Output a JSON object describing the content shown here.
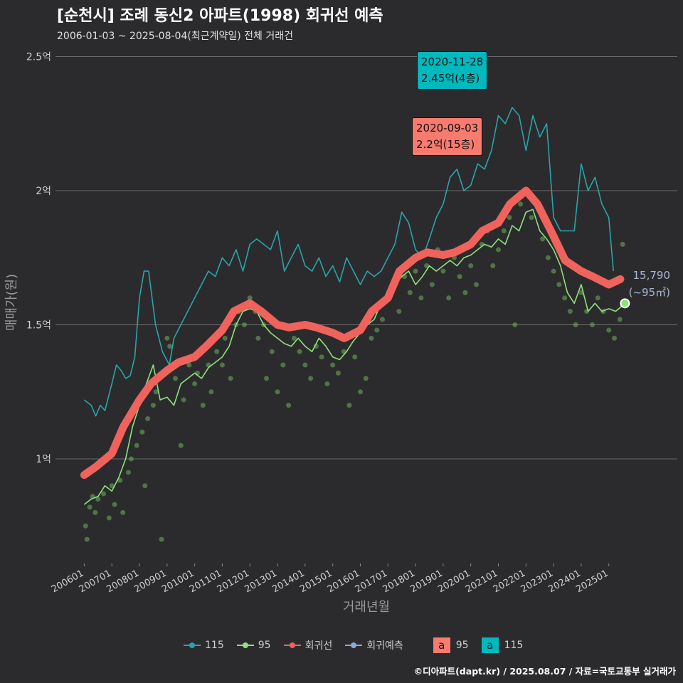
{
  "title": "[순천시] 조례 동신2 아파트(1998) 회귀선 예측",
  "subtitle": "2006-01-03 ~ 2025-08-04(최근계약일) 전체 거래건",
  "caption": "©디아파트(dapt.kr) / 2025.08.07 / 자료=국토교통부 실거래가",
  "legend": {
    "items": [
      {
        "label": "115",
        "color": "#2aa4a8",
        "icon": "line-point"
      },
      {
        "label": "95",
        "color": "#8ee27a",
        "icon": "line-point"
      },
      {
        "label": "회귀선",
        "color": "#f0625c",
        "icon": "line-point"
      },
      {
        "label": "회귀예측",
        "color": "#8fa8d8",
        "icon": "line-point"
      }
    ],
    "fill_items": [
      {
        "box": "a",
        "label": "95",
        "color": "#f87b6f"
      },
      {
        "box": "a",
        "label": "115",
        "color": "#00b9be"
      }
    ]
  },
  "annotations": {
    "top_115": {
      "date": "2020-11-28",
      "text": "2.45억(4층)"
    },
    "top_95": {
      "date": "2020-09-03",
      "text": "2.2억(15층)"
    },
    "latest_value": "15,790",
    "latest_area": "(~95㎡)"
  },
  "colors": {
    "background": "#2b2b2d",
    "grid": "#6a6a6a",
    "s115": "#2aa4a8",
    "s95": "#8ee27a",
    "regression": "#f0625c",
    "prediction": "#8fa8d8",
    "scatter": "#6fb05c"
  },
  "chart_data": {
    "type": "line",
    "xlabel": "거래년월",
    "ylabel": "매매가(원)",
    "x_range": [
      "2006-01",
      "2025-08"
    ],
    "ylim": [
      0.6,
      2.55
    ],
    "y_unit": "억",
    "y_ticks": [
      {
        "value": 1.0,
        "label": "1억"
      },
      {
        "value": 1.5,
        "label": "1.5억"
      },
      {
        "value": 2.0,
        "label": "2억"
      },
      {
        "value": 2.5,
        "label": "2.5억"
      }
    ],
    "x_ticks": [
      "200601",
      "200701",
      "200801",
      "200901",
      "201001",
      "201101",
      "201201",
      "201301",
      "201401",
      "201501",
      "201601",
      "201701",
      "201801",
      "201901",
      "202001",
      "202101",
      "202201",
      "202301",
      "202401",
      "202501"
    ],
    "grid": "horizontal",
    "series": [
      {
        "name": "115",
        "type": "line",
        "x": [
          "2006-01",
          "2006-04",
          "2006-06",
          "2006-08",
          "2006-10",
          "2007-01",
          "2007-03",
          "2007-05",
          "2007-07",
          "2007-09",
          "2007-11",
          "2008-01",
          "2008-03",
          "2008-05",
          "2008-08",
          "2008-11",
          "2009-02",
          "2009-04",
          "2009-07",
          "2009-10",
          "2010-01",
          "2010-04",
          "2010-07",
          "2010-10",
          "2011-01",
          "2011-04",
          "2011-07",
          "2011-10",
          "2012-01",
          "2012-04",
          "2012-07",
          "2012-10",
          "2013-01",
          "2013-04",
          "2013-07",
          "2013-10",
          "2014-01",
          "2014-04",
          "2014-07",
          "2014-10",
          "2015-01",
          "2015-04",
          "2015-07",
          "2015-10",
          "2016-01",
          "2016-04",
          "2016-07",
          "2016-10",
          "2017-01",
          "2017-04",
          "2017-07",
          "2017-10",
          "2018-01",
          "2018-04",
          "2018-07",
          "2018-10",
          "2019-01",
          "2019-04",
          "2019-07",
          "2019-10",
          "2020-01",
          "2020-04",
          "2020-07",
          "2020-10",
          "2021-01",
          "2021-04",
          "2021-07",
          "2021-10",
          "2022-01",
          "2022-04",
          "2022-07",
          "2022-10",
          "2023-01",
          "2023-04",
          "2023-07",
          "2023-10",
          "2024-01",
          "2024-04",
          "2024-07",
          "2024-10",
          "2025-01",
          "2025-03"
        ],
        "values": [
          1.22,
          1.2,
          1.16,
          1.2,
          1.18,
          1.28,
          1.35,
          1.33,
          1.3,
          1.31,
          1.38,
          1.6,
          1.7,
          1.7,
          1.5,
          1.4,
          1.35,
          1.45,
          1.5,
          1.55,
          1.6,
          1.65,
          1.7,
          1.68,
          1.75,
          1.72,
          1.78,
          1.7,
          1.8,
          1.82,
          1.8,
          1.78,
          1.85,
          1.7,
          1.75,
          1.8,
          1.72,
          1.7,
          1.75,
          1.68,
          1.72,
          1.66,
          1.75,
          1.7,
          1.65,
          1.7,
          1.68,
          1.7,
          1.75,
          1.8,
          1.92,
          1.88,
          1.78,
          1.75,
          1.82,
          1.9,
          1.95,
          2.05,
          2.08,
          2.0,
          2.02,
          2.1,
          2.08,
          2.15,
          2.28,
          2.25,
          2.31,
          2.28,
          2.15,
          2.28,
          2.2,
          2.25,
          1.9,
          1.85,
          1.85,
          1.85,
          2.1,
          2.0,
          2.05,
          1.95,
          1.9,
          1.7
        ]
      },
      {
        "name": "95",
        "type": "line",
        "x": [
          "2006-01",
          "2006-04",
          "2006-07",
          "2006-10",
          "2007-01",
          "2007-04",
          "2007-07",
          "2007-10",
          "2008-01",
          "2008-04",
          "2008-07",
          "2008-10",
          "2009-01",
          "2009-04",
          "2009-07",
          "2009-10",
          "2010-01",
          "2010-04",
          "2010-07",
          "2010-10",
          "2011-01",
          "2011-04",
          "2011-07",
          "2011-10",
          "2012-01",
          "2012-04",
          "2012-07",
          "2012-10",
          "2013-01",
          "2013-04",
          "2013-07",
          "2013-10",
          "2014-01",
          "2014-04",
          "2014-07",
          "2014-10",
          "2015-01",
          "2015-04",
          "2015-07",
          "2015-10",
          "2016-01",
          "2016-04",
          "2016-07",
          "2016-10",
          "2017-01",
          "2017-04",
          "2017-07",
          "2017-10",
          "2018-01",
          "2018-04",
          "2018-07",
          "2018-10",
          "2019-01",
          "2019-04",
          "2019-07",
          "2019-10",
          "2020-01",
          "2020-04",
          "2020-07",
          "2020-10",
          "2021-01",
          "2021-04",
          "2021-07",
          "2021-10",
          "2022-01",
          "2022-04",
          "2022-07",
          "2022-10",
          "2023-01",
          "2023-04",
          "2023-07",
          "2023-10",
          "2024-01",
          "2024-04",
          "2024-07",
          "2024-10",
          "2025-01",
          "2025-04",
          "2025-08"
        ],
        "values": [
          0.83,
          0.85,
          0.86,
          0.9,
          0.88,
          0.93,
          1.0,
          1.12,
          1.2,
          1.28,
          1.35,
          1.22,
          1.23,
          1.2,
          1.28,
          1.3,
          1.32,
          1.3,
          1.34,
          1.36,
          1.38,
          1.42,
          1.5,
          1.55,
          1.56,
          1.55,
          1.5,
          1.47,
          1.45,
          1.43,
          1.42,
          1.45,
          1.42,
          1.4,
          1.45,
          1.42,
          1.38,
          1.37,
          1.4,
          1.44,
          1.47,
          1.5,
          1.52,
          1.58,
          1.62,
          1.65,
          1.68,
          1.7,
          1.65,
          1.68,
          1.72,
          1.7,
          1.72,
          1.74,
          1.72,
          1.75,
          1.76,
          1.78,
          1.8,
          1.79,
          1.82,
          1.8,
          1.87,
          1.85,
          1.92,
          1.93,
          1.85,
          1.82,
          1.78,
          1.72,
          1.62,
          1.58,
          1.65,
          1.55,
          1.58,
          1.55,
          1.56,
          1.55,
          1.58
        ]
      },
      {
        "name": "회귀선",
        "type": "line",
        "x": [
          "2006-01",
          "2006-06",
          "2007-01",
          "2007-06",
          "2008-01",
          "2008-06",
          "2009-01",
          "2009-06",
          "2010-01",
          "2010-06",
          "2011-01",
          "2011-06",
          "2012-01",
          "2012-06",
          "2013-01",
          "2013-06",
          "2014-01",
          "2014-06",
          "2015-01",
          "2015-06",
          "2016-01",
          "2016-06",
          "2017-01",
          "2017-06",
          "2018-01",
          "2018-06",
          "2019-01",
          "2019-06",
          "2020-01",
          "2020-06",
          "2021-01",
          "2021-06",
          "2022-01",
          "2022-06",
          "2023-01",
          "2023-06",
          "2024-01",
          "2024-06",
          "2025-01",
          "2025-06"
        ],
        "values": [
          0.94,
          0.97,
          1.02,
          1.12,
          1.22,
          1.28,
          1.33,
          1.36,
          1.38,
          1.42,
          1.48,
          1.55,
          1.58,
          1.55,
          1.5,
          1.49,
          1.5,
          1.49,
          1.47,
          1.45,
          1.48,
          1.55,
          1.6,
          1.7,
          1.75,
          1.77,
          1.76,
          1.77,
          1.8,
          1.85,
          1.88,
          1.95,
          2.0,
          1.95,
          1.83,
          1.74,
          1.7,
          1.68,
          1.65,
          1.67
        ]
      },
      {
        "name": "회귀예측",
        "type": "point",
        "x": [
          "2025-08"
        ],
        "values": [
          1.58
        ]
      }
    ],
    "scatter_points": [
      [
        2006.05,
        0.75
      ],
      [
        2006.1,
        0.7
      ],
      [
        2006.2,
        0.82
      ],
      [
        2006.3,
        0.86
      ],
      [
        2006.4,
        0.8
      ],
      [
        2006.5,
        0.85
      ],
      [
        2006.7,
        0.87
      ],
      [
        2006.9,
        0.78
      ],
      [
        2007.0,
        0.9
      ],
      [
        2007.1,
        0.83
      ],
      [
        2007.3,
        0.92
      ],
      [
        2007.4,
        0.8
      ],
      [
        2007.6,
        0.95
      ],
      [
        2007.7,
        1.0
      ],
      [
        2007.9,
        1.05
      ],
      [
        2008.1,
        1.1
      ],
      [
        2008.2,
        0.9
      ],
      [
        2008.3,
        1.15
      ],
      [
        2008.5,
        1.2
      ],
      [
        2008.6,
        1.25
      ],
      [
        2008.8,
        0.7
      ],
      [
        2009.0,
        1.45
      ],
      [
        2009.1,
        1.42
      ],
      [
        2009.3,
        1.3
      ],
      [
        2009.5,
        1.05
      ],
      [
        2009.6,
        1.22
      ],
      [
        2009.8,
        1.35
      ],
      [
        2010.0,
        1.28
      ],
      [
        2010.1,
        1.32
      ],
      [
        2010.3,
        1.2
      ],
      [
        2010.5,
        1.35
      ],
      [
        2010.6,
        1.25
      ],
      [
        2010.8,
        1.4
      ],
      [
        2011.0,
        1.35
      ],
      [
        2011.1,
        1.45
      ],
      [
        2011.3,
        1.3
      ],
      [
        2011.5,
        1.5
      ],
      [
        2011.6,
        1.55
      ],
      [
        2011.8,
        1.5
      ],
      [
        2012.0,
        1.6
      ],
      [
        2012.2,
        1.55
      ],
      [
        2012.3,
        1.45
      ],
      [
        2012.5,
        1.5
      ],
      [
        2012.6,
        1.3
      ],
      [
        2012.8,
        1.4
      ],
      [
        2013.0,
        1.25
      ],
      [
        2013.2,
        1.35
      ],
      [
        2013.4,
        1.2
      ],
      [
        2013.6,
        1.45
      ],
      [
        2013.8,
        1.4
      ],
      [
        2014.0,
        1.35
      ],
      [
        2014.2,
        1.3
      ],
      [
        2014.4,
        1.42
      ],
      [
        2014.6,
        1.38
      ],
      [
        2014.8,
        1.28
      ],
      [
        2015.0,
        1.35
      ],
      [
        2015.2,
        1.32
      ],
      [
        2015.4,
        1.4
      ],
      [
        2015.6,
        1.2
      ],
      [
        2015.8,
        1.38
      ],
      [
        2016.0,
        1.25
      ],
      [
        2016.2,
        1.3
      ],
      [
        2016.4,
        1.45
      ],
      [
        2016.6,
        1.48
      ],
      [
        2016.8,
        1.52
      ],
      [
        2017.0,
        1.6
      ],
      [
        2017.2,
        1.65
      ],
      [
        2017.4,
        1.55
      ],
      [
        2017.6,
        1.68
      ],
      [
        2017.8,
        1.62
      ],
      [
        2018.0,
        1.7
      ],
      [
        2018.2,
        1.6
      ],
      [
        2018.4,
        1.72
      ],
      [
        2018.6,
        1.65
      ],
      [
        2018.8,
        1.78
      ],
      [
        2019.0,
        1.7
      ],
      [
        2019.2,
        1.6
      ],
      [
        2019.4,
        1.75
      ],
      [
        2019.6,
        1.68
      ],
      [
        2019.8,
        1.62
      ],
      [
        2020.0,
        1.72
      ],
      [
        2020.2,
        1.65
      ],
      [
        2020.4,
        1.8
      ],
      [
        2020.6,
        1.85
      ],
      [
        2020.8,
        1.72
      ],
      [
        2021.0,
        1.78
      ],
      [
        2021.2,
        1.85
      ],
      [
        2021.4,
        1.9
      ],
      [
        2021.6,
        1.5
      ],
      [
        2021.8,
        1.95
      ],
      [
        2022.0,
        2.0
      ],
      [
        2022.2,
        1.9
      ],
      [
        2022.4,
        1.95
      ],
      [
        2022.6,
        1.82
      ],
      [
        2022.8,
        1.75
      ],
      [
        2023.0,
        1.7
      ],
      [
        2023.2,
        1.65
      ],
      [
        2023.4,
        1.6
      ],
      [
        2023.6,
        1.55
      ],
      [
        2023.8,
        1.5
      ],
      [
        2024.0,
        1.62
      ],
      [
        2024.2,
        1.55
      ],
      [
        2024.4,
        1.5
      ],
      [
        2024.6,
        1.6
      ],
      [
        2024.8,
        1.55
      ],
      [
        2025.0,
        1.48
      ],
      [
        2025.2,
        1.45
      ],
      [
        2025.4,
        1.52
      ],
      [
        2025.5,
        1.8
      ]
    ]
  }
}
